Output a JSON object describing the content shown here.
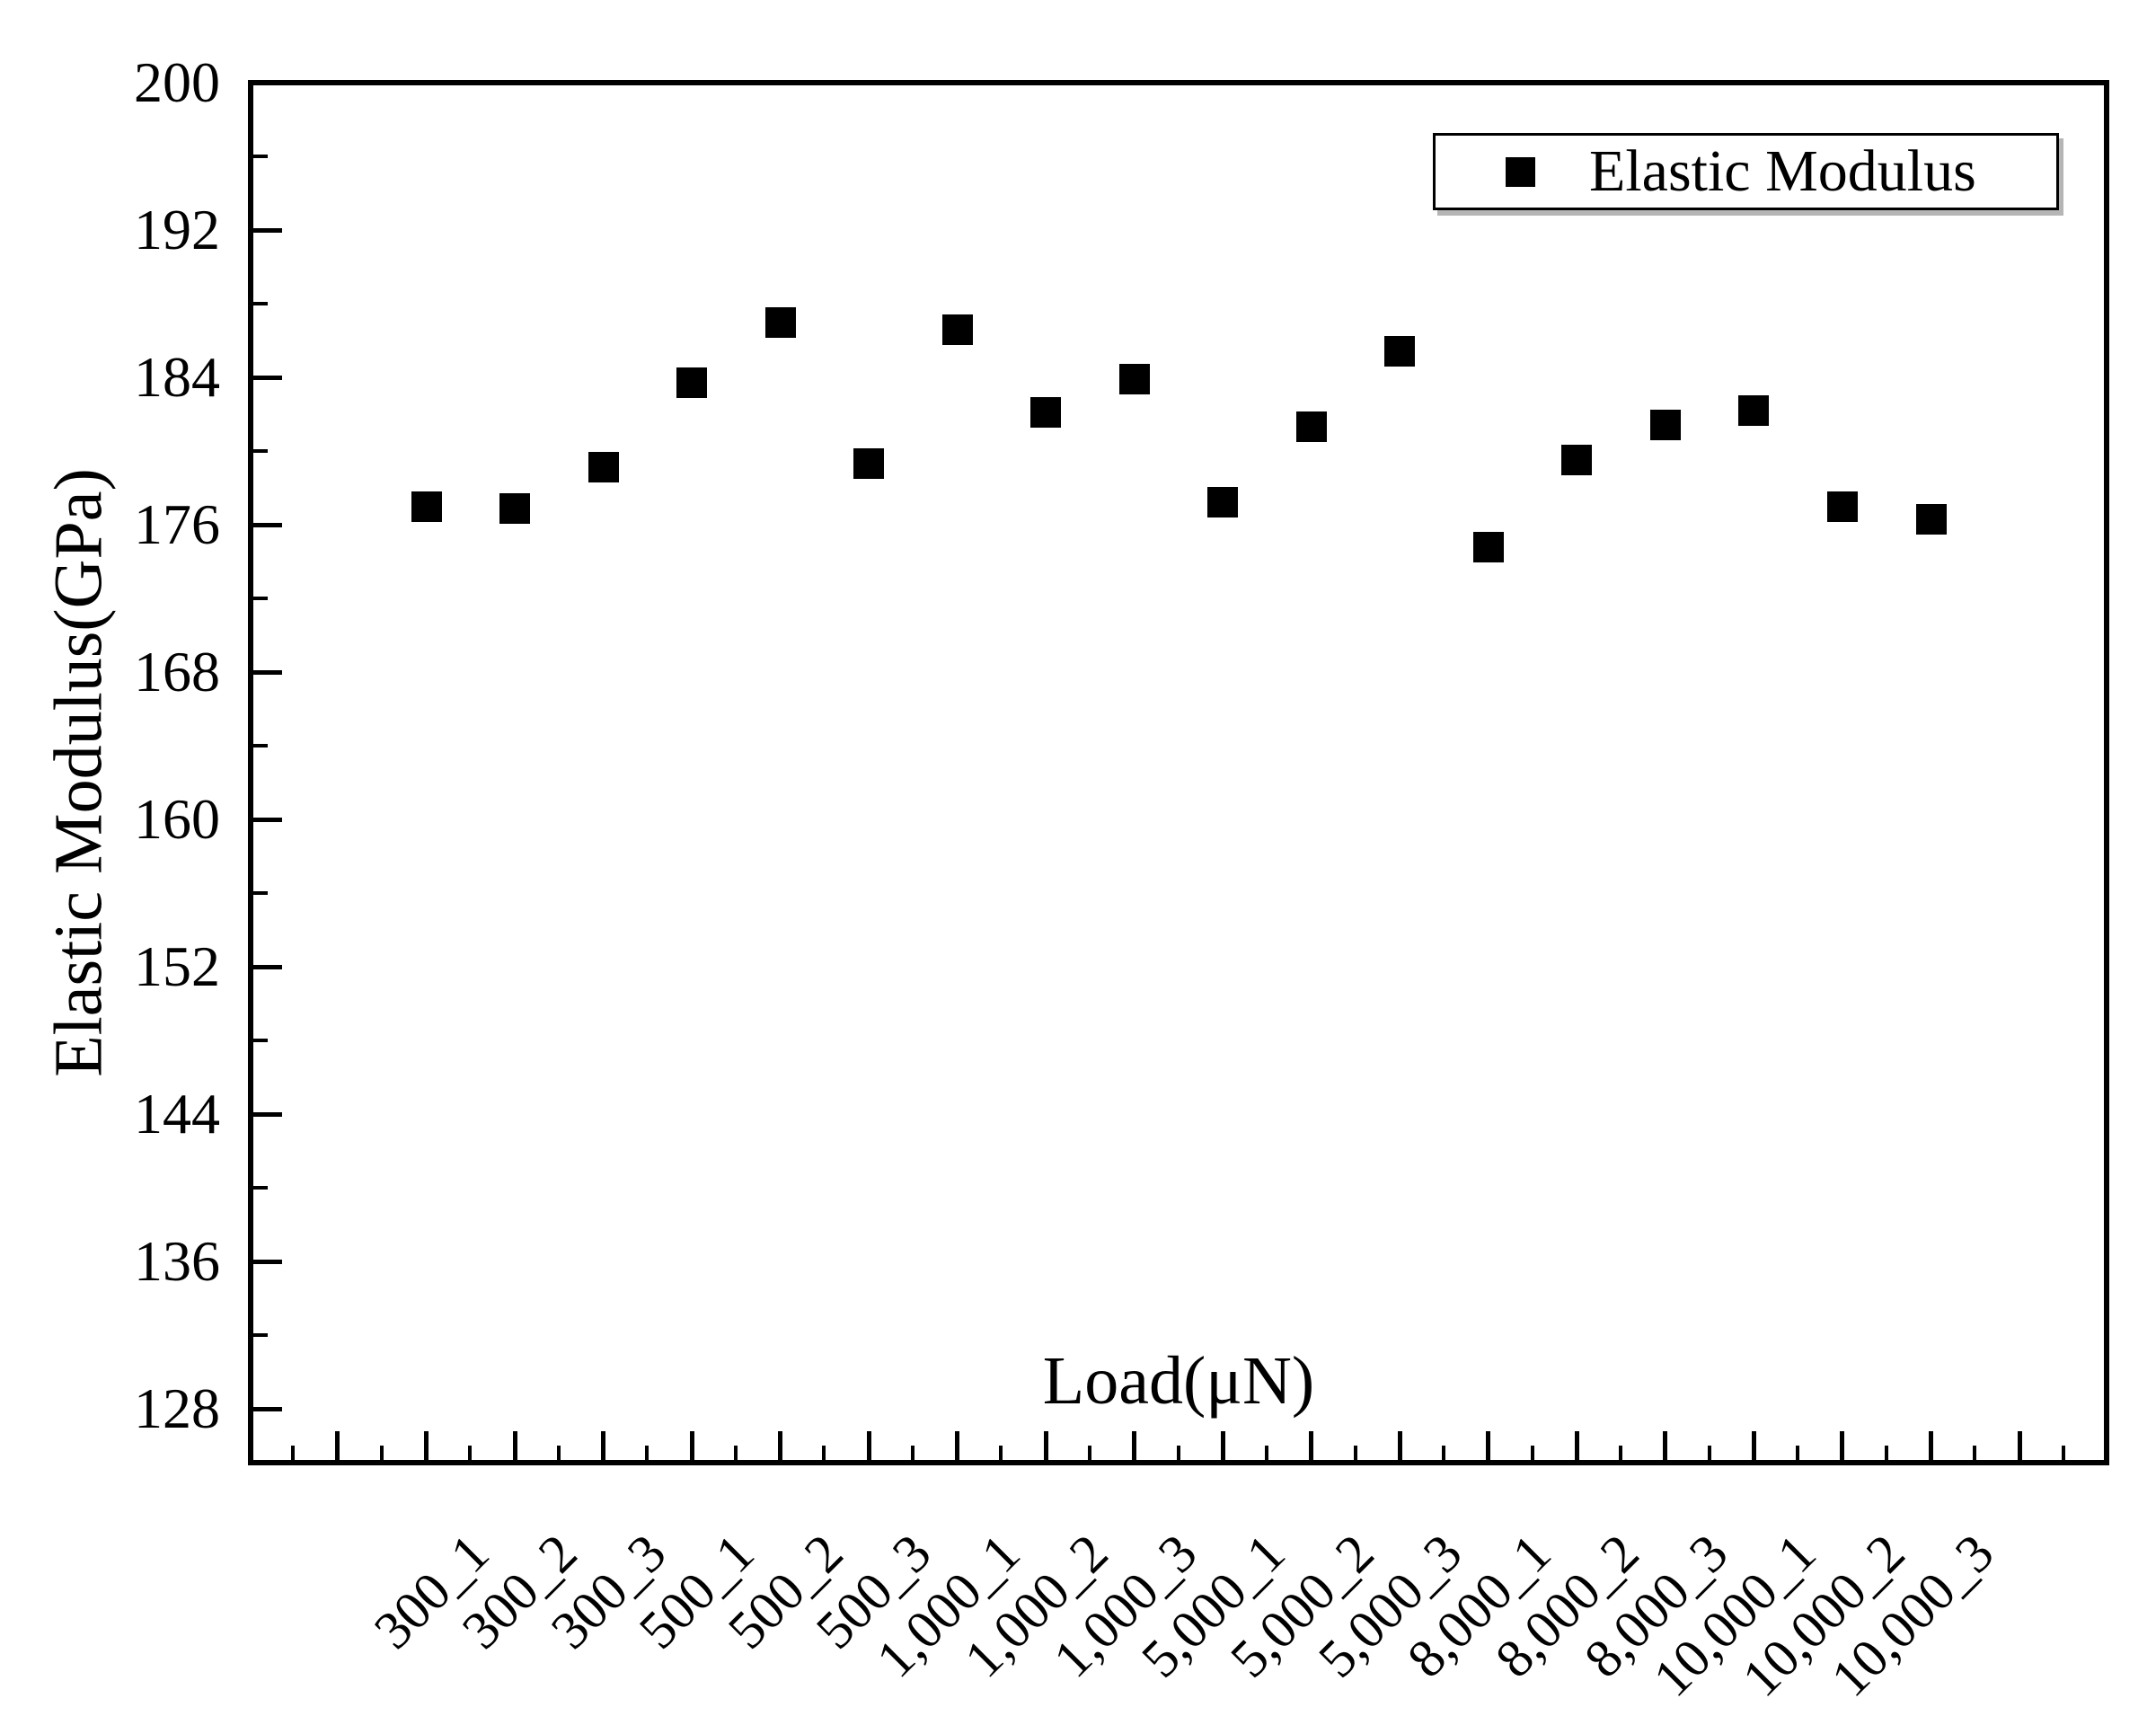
{
  "colors": {
    "foreground": "#000000",
    "background": "#ffffff",
    "marker": "#000000",
    "legend_shadow": "#787878"
  },
  "chart_data": {
    "type": "scatter",
    "title": "",
    "xlabel": "Load(μN)",
    "ylabel": "Elastic Modulus(GPa)",
    "categories": [
      "300_1",
      "300_2",
      "300_3",
      "500_1",
      "500_2",
      "500_3",
      "1,000_1",
      "1,000_2",
      "1,000_3",
      "5,000_1",
      "5,000_2",
      "5,000_3",
      "8,000_1",
      "8,000_2",
      "8,000_3",
      "10,000_1",
      "10,000_2",
      "10,000_3"
    ],
    "series": [
      {
        "name": "Elastic Modulus",
        "marker": "filled-square",
        "color": "#000000",
        "values": [
          177.0,
          176.9,
          179.1,
          183.7,
          187.0,
          179.3,
          186.6,
          182.1,
          183.9,
          177.2,
          181.3,
          185.4,
          174.8,
          179.5,
          181.4,
          182.2,
          177.0,
          176.3
        ]
      }
    ],
    "ylim": [
      125,
      200
    ],
    "yticks": [
      128,
      136,
      144,
      152,
      160,
      168,
      176,
      184,
      192,
      200
    ],
    "yticks_minor": [
      132,
      140,
      148,
      156,
      164,
      172,
      180,
      188,
      196
    ],
    "x_tick_style": "major tick at each category, minor tick midway between, ticks inside axis",
    "x_label_rotation_deg": -45,
    "grid": false,
    "legend": {
      "entries": [
        "Elastic Modulus"
      ],
      "position": "top-right",
      "border": true
    }
  }
}
